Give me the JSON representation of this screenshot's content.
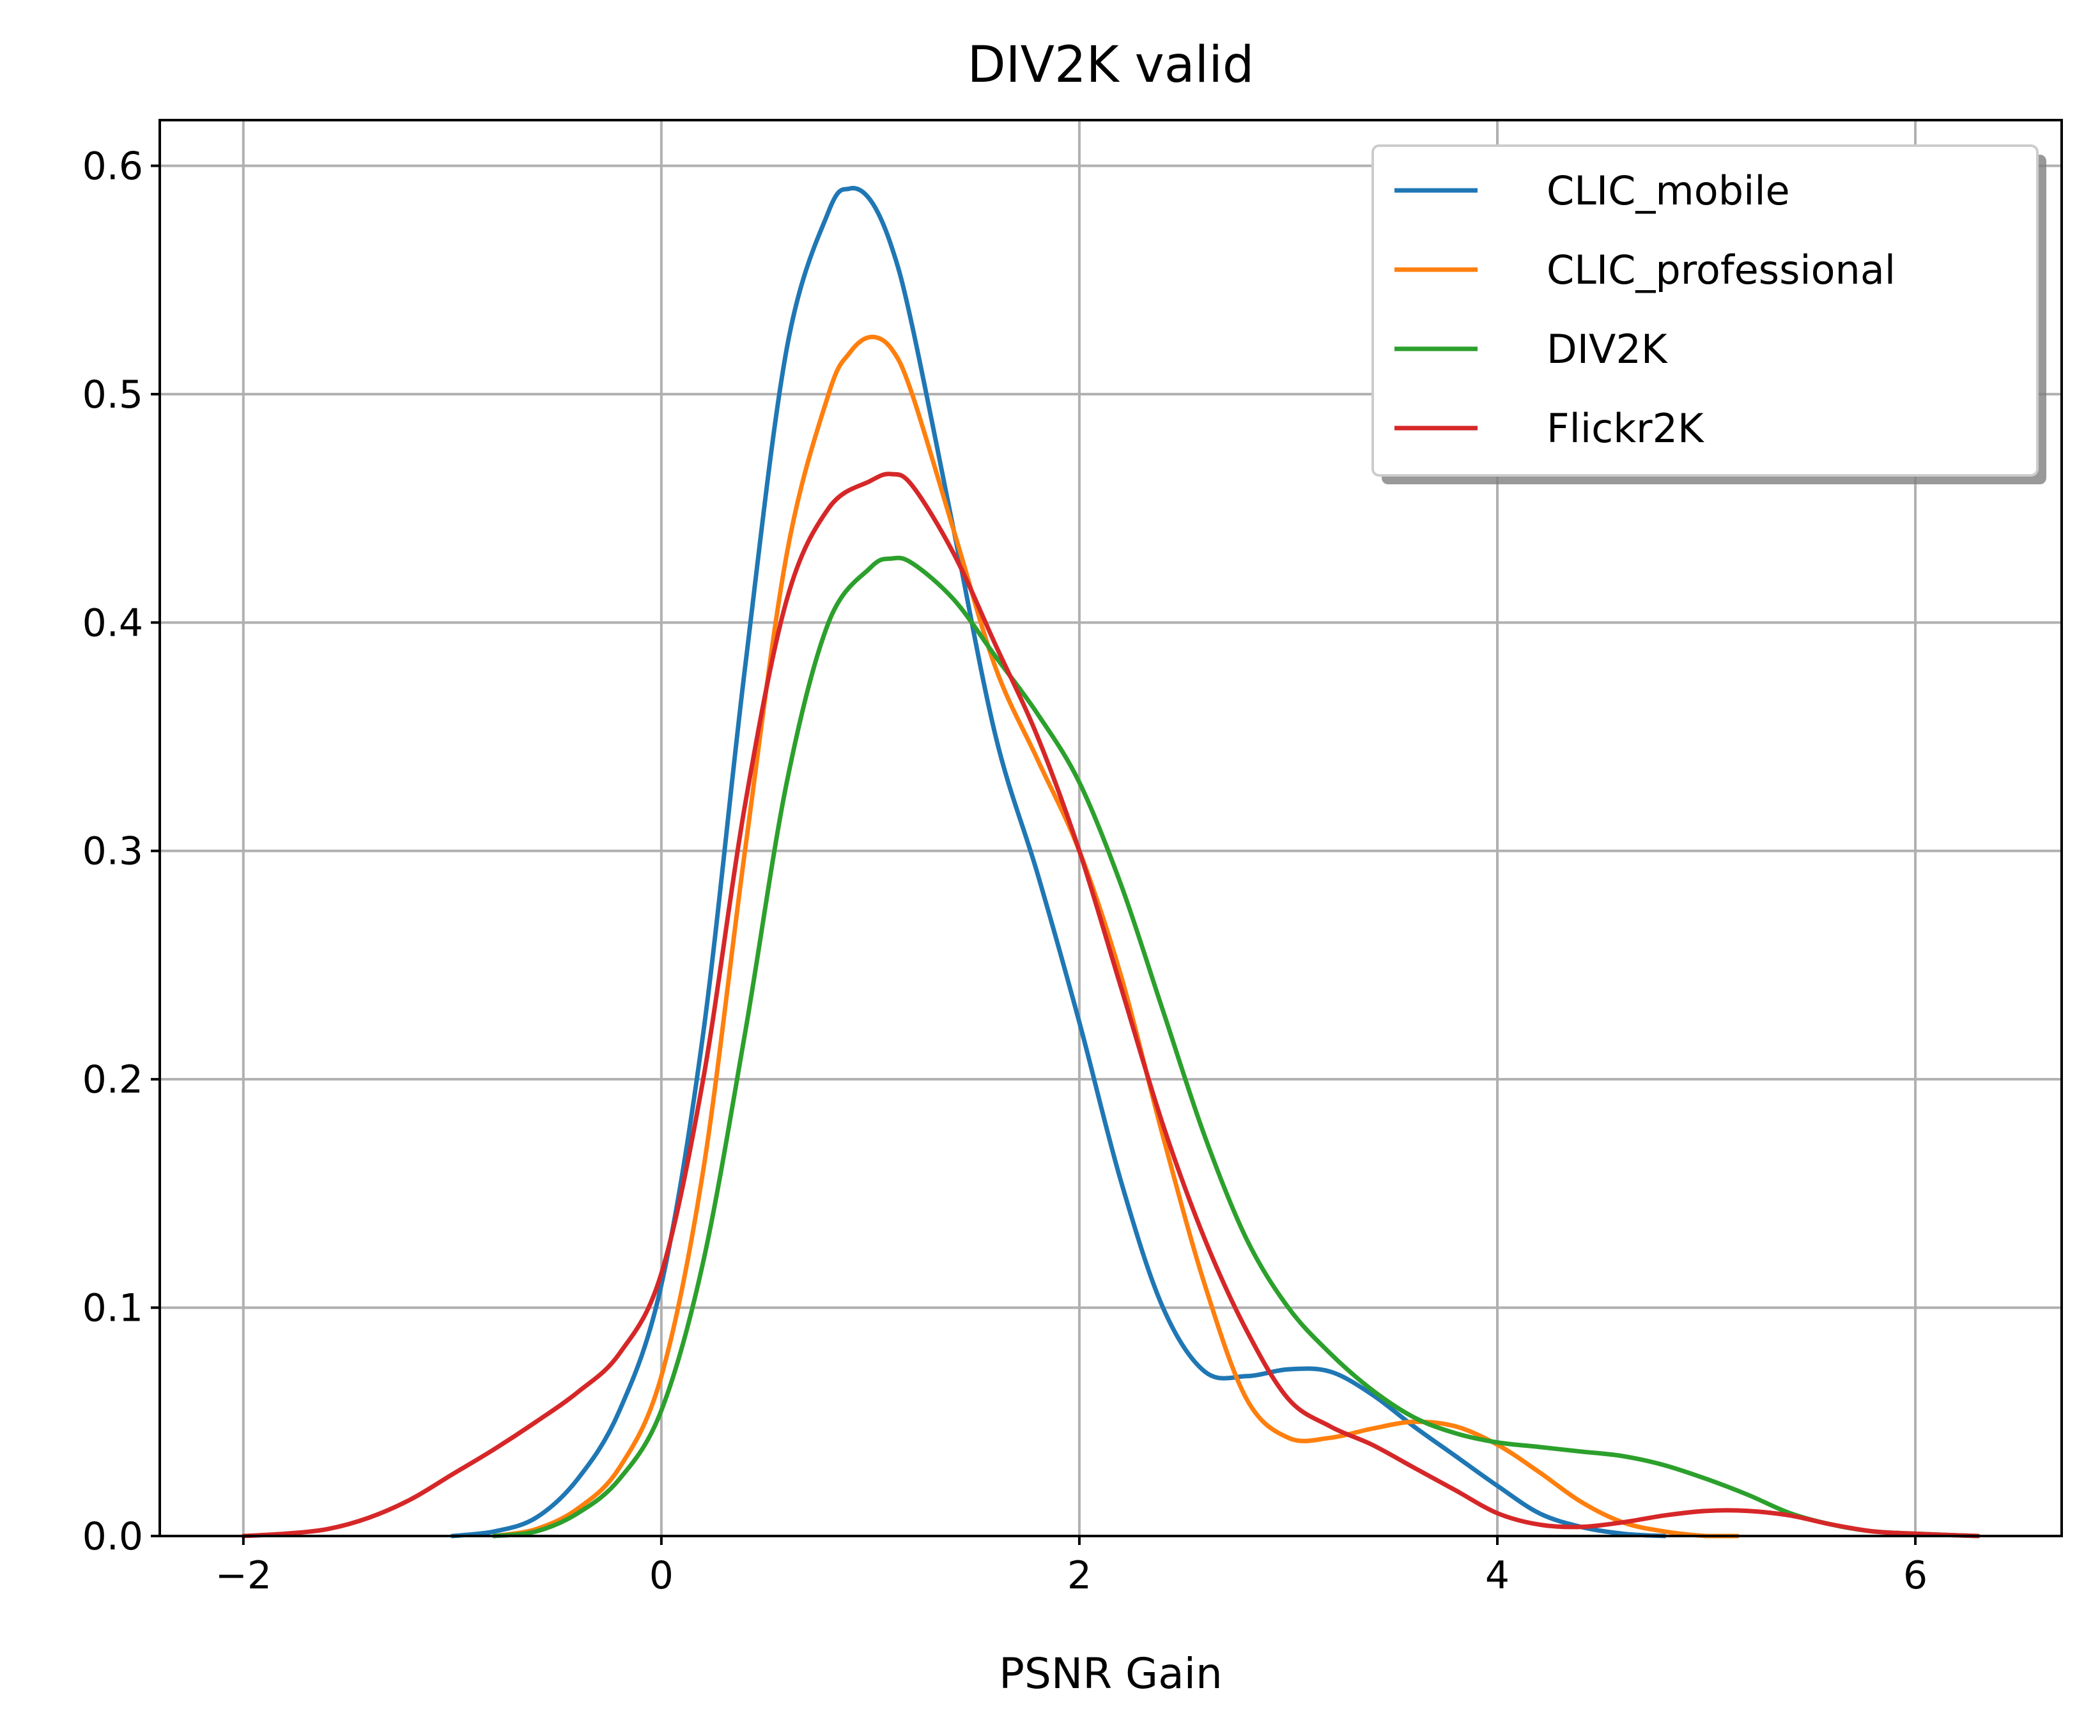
{
  "chart_data": {
    "type": "line",
    "title": "DIV2K valid",
    "xlabel": "PSNR Gain",
    "ylabel": "",
    "xlim": [
      -2.4,
      6.7
    ],
    "ylim": [
      0.0,
      0.62
    ],
    "x_ticks": [
      -2,
      0,
      2,
      4,
      6
    ],
    "x_tick_labels": [
      "−2",
      "0",
      "2",
      "4",
      "6"
    ],
    "y_ticks": [
      0.0,
      0.1,
      0.2,
      0.3,
      0.4,
      0.5,
      0.6
    ],
    "y_tick_labels": [
      "0.0",
      "0.1",
      "0.2",
      "0.3",
      "0.4",
      "0.5",
      "0.6"
    ],
    "grid": true,
    "legend_position": "top-right",
    "series": [
      {
        "name": "CLIC_mobile",
        "color": "#1f77b4",
        "x": [
          -1.0,
          -0.8,
          -0.6,
          -0.4,
          -0.2,
          0.0,
          0.2,
          0.4,
          0.6,
          0.8,
          0.9,
          1.0,
          1.1,
          1.2,
          1.4,
          1.6,
          1.8,
          2.0,
          2.2,
          2.4,
          2.6,
          2.8,
          3.0,
          3.2,
          3.4,
          3.6,
          3.8,
          4.0,
          4.2,
          4.4,
          4.6,
          4.8
        ],
        "y": [
          0.0,
          0.002,
          0.008,
          0.025,
          0.055,
          0.11,
          0.22,
          0.38,
          0.52,
          0.58,
          0.59,
          0.585,
          0.565,
          0.53,
          0.44,
          0.35,
          0.29,
          0.225,
          0.155,
          0.1,
          0.072,
          0.07,
          0.073,
          0.072,
          0.062,
          0.048,
          0.035,
          0.022,
          0.01,
          0.004,
          0.001,
          0.0
        ]
      },
      {
        "name": "CLIC_professional",
        "color": "#ff7f0e",
        "x": [
          -0.8,
          -0.6,
          -0.4,
          -0.2,
          0.0,
          0.2,
          0.4,
          0.6,
          0.8,
          0.9,
          1.0,
          1.1,
          1.2,
          1.4,
          1.6,
          1.8,
          2.0,
          2.2,
          2.4,
          2.6,
          2.8,
          3.0,
          3.2,
          3.4,
          3.6,
          3.8,
          4.0,
          4.2,
          4.4,
          4.6,
          4.8,
          5.0,
          5.15
        ],
        "y": [
          0.0,
          0.003,
          0.012,
          0.03,
          0.07,
          0.16,
          0.3,
          0.43,
          0.5,
          0.518,
          0.525,
          0.52,
          0.5,
          0.44,
          0.38,
          0.34,
          0.3,
          0.245,
          0.175,
          0.11,
          0.06,
          0.043,
          0.043,
          0.047,
          0.05,
          0.048,
          0.04,
          0.028,
          0.015,
          0.006,
          0.002,
          0.0,
          0.0
        ]
      },
      {
        "name": "DIV2K",
        "color": "#2ca02c",
        "x": [
          -0.8,
          -0.6,
          -0.4,
          -0.2,
          0.0,
          0.2,
          0.4,
          0.6,
          0.8,
          1.0,
          1.1,
          1.2,
          1.4,
          1.6,
          1.8,
          2.0,
          2.2,
          2.4,
          2.6,
          2.8,
          3.0,
          3.2,
          3.4,
          3.6,
          3.8,
          4.0,
          4.2,
          4.4,
          4.6,
          4.8,
          5.0,
          5.2,
          5.4,
          5.6,
          5.8,
          6.0,
          6.3
        ],
        "y": [
          0.0,
          0.002,
          0.01,
          0.025,
          0.055,
          0.12,
          0.22,
          0.33,
          0.4,
          0.424,
          0.428,
          0.426,
          0.41,
          0.385,
          0.36,
          0.33,
          0.285,
          0.23,
          0.175,
          0.13,
          0.1,
          0.08,
          0.064,
          0.052,
          0.045,
          0.041,
          0.039,
          0.037,
          0.035,
          0.031,
          0.025,
          0.018,
          0.01,
          0.005,
          0.002,
          0.001,
          0.0
        ]
      },
      {
        "name": "Flickr2K",
        "color": "#d62728",
        "x": [
          -2.0,
          -1.8,
          -1.6,
          -1.4,
          -1.2,
          -1.0,
          -0.8,
          -0.6,
          -0.4,
          -0.2,
          0.0,
          0.2,
          0.4,
          0.6,
          0.8,
          1.0,
          1.1,
          1.2,
          1.4,
          1.6,
          1.8,
          2.0,
          2.2,
          2.4,
          2.6,
          2.8,
          3.0,
          3.2,
          3.4,
          3.6,
          3.8,
          4.0,
          4.2,
          4.4,
          4.6,
          4.8,
          5.0,
          5.2,
          5.4,
          5.6,
          5.8,
          6.0,
          6.3
        ],
        "y": [
          0.0,
          0.001,
          0.003,
          0.008,
          0.016,
          0.027,
          0.038,
          0.05,
          0.063,
          0.08,
          0.115,
          0.2,
          0.32,
          0.41,
          0.45,
          0.462,
          0.465,
          0.46,
          0.43,
          0.39,
          0.35,
          0.3,
          0.24,
          0.18,
          0.13,
          0.09,
          0.06,
          0.048,
          0.04,
          0.03,
          0.02,
          0.01,
          0.005,
          0.004,
          0.006,
          0.009,
          0.011,
          0.011,
          0.009,
          0.005,
          0.002,
          0.001,
          0.0
        ]
      }
    ]
  }
}
